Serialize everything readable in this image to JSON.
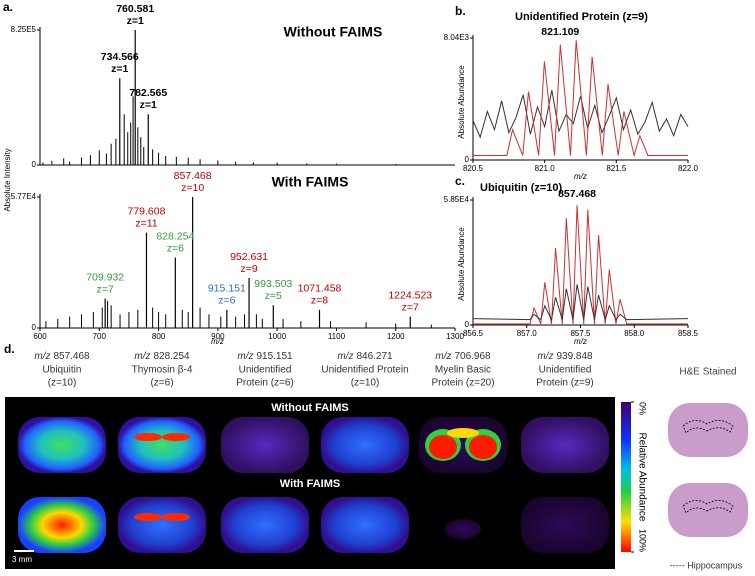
{
  "chart_data": [
    {
      "type": "stick",
      "panel": "a.",
      "title": "Without FAIMS",
      "ylabel": "Absolute Intensity",
      "color": "#000000",
      "xlim": [
        600,
        1300
      ],
      "ylim": [
        0,
        825000
      ],
      "yticks": [
        0,
        {
          "value": 825000,
          "label": "8.25E5"
        }
      ],
      "x": [
        605,
        620,
        640,
        650,
        670,
        685,
        700,
        712,
        720,
        728,
        742,
        748,
        753,
        757,
        765,
        770,
        775,
        790,
        800,
        812,
        830,
        850,
        870,
        900,
        930,
        960,
        1000,
        1050,
        1100,
        1200
      ],
      "values": [
        15000,
        25000,
        40000,
        20000,
        45000,
        60000,
        90000,
        70000,
        130000,
        160000,
        310000,
        200000,
        260000,
        420000,
        230000,
        170000,
        110000,
        95000,
        75000,
        55000,
        50000,
        45000,
        35000,
        28000,
        20000,
        16000,
        14000,
        10000,
        8000,
        6000
      ],
      "annotations": [
        {
          "x": 760.581,
          "y": 825000,
          "text": "z=1",
          "color": "#000000"
        },
        {
          "x": 734.566,
          "y": 530000,
          "text": "z=1",
          "color": "#000000"
        },
        {
          "x": 782.565,
          "y": 310000,
          "text": "z=1",
          "color": "#000000"
        }
      ]
    },
    {
      "type": "stick",
      "title": "With FAIMS",
      "xlabel": "m/z",
      "color": "#000000",
      "xlim": [
        600,
        1300
      ],
      "ylim": [
        0,
        57700
      ],
      "yticks": [
        0,
        {
          "value": 57700,
          "label": "5.77E4"
        }
      ],
      "xticks": [
        600,
        700,
        800,
        900,
        1000,
        1100,
        1200,
        1300
      ],
      "x": [
        610,
        630,
        650,
        670,
        690,
        705,
        714,
        720,
        735,
        750,
        765,
        790,
        800,
        812,
        840,
        850,
        870,
        885,
        905,
        930,
        945,
        965,
        975,
        1010,
        1040,
        1090,
        1150,
        1200,
        1260
      ],
      "values": [
        3000,
        4000,
        5000,
        6000,
        7000,
        9000,
        12000,
        10000,
        6000,
        7000,
        8000,
        9000,
        7000,
        6000,
        8000,
        7000,
        9000,
        6000,
        5000,
        5000,
        6000,
        6000,
        4000,
        4000,
        3000,
        3000,
        2500,
        2000,
        1500
      ],
      "annotations": [
        {
          "x": 857.468,
          "y": 57700,
          "text": "z=10",
          "color": "#c00000"
        },
        {
          "x": 779.608,
          "y": 42000,
          "text": "z=11",
          "color": "#c00000"
        },
        {
          "x": 828.254,
          "y": 31000,
          "text": "z=6",
          "color": "#2e9e3a"
        },
        {
          "x": 709.932,
          "y": 13000,
          "text": "z=7",
          "color": "#2e9e3a"
        },
        {
          "x": 952.631,
          "y": 22000,
          "text": "z=9",
          "color": "#c00000"
        },
        {
          "x": 915.151,
          "y": 8000,
          "text": "z=6",
          "color": "#2f6fb8"
        },
        {
          "x": 993.503,
          "y": 10000,
          "text": "z=5",
          "color": "#2e9e3a"
        },
        {
          "x": 1071.458,
          "y": 8000,
          "text": "z=8",
          "color": "#c00000"
        },
        {
          "x": 1224.523,
          "y": 5000,
          "text": "z=7",
          "color": "#c00000"
        }
      ]
    },
    {
      "type": "line",
      "panel": "b.",
      "title": "Unidentified Protein (z=9)",
      "ylabel": "Absolute Abundance",
      "xlabel": "m/z",
      "xlim": [
        820.5,
        822.0
      ],
      "ylim": [
        0,
        8040
      ],
      "yticks": [
        0,
        {
          "value": 8040,
          "label": "8.04E3"
        }
      ],
      "xticks": [
        820.5,
        {
          "value": 821,
          "label": "821.0"
        },
        821.5,
        {
          "value": 822,
          "label": "822.0"
        }
      ],
      "series": [
        {
          "color": "#333333",
          "x": [
            820.5,
            820.55,
            820.6,
            820.65,
            820.7,
            820.75,
            820.8,
            820.85,
            820.9,
            820.95,
            821.0,
            821.05,
            821.1,
            821.15,
            821.2,
            821.25,
            821.3,
            821.35,
            821.4,
            821.45,
            821.5,
            821.55,
            821.6,
            821.65,
            821.7,
            821.75,
            821.8,
            821.85,
            821.9,
            821.95,
            822.0
          ],
          "values": [
            2600,
            1500,
            3200,
            2000,
            3900,
            1800,
            2800,
            4300,
            1700,
            3500,
            2200,
            4600,
            1900,
            3000,
            2400,
            4200,
            2100,
            3600,
            1800,
            2900,
            4100,
            2000,
            3300,
            1700,
            2500,
            3800,
            1900,
            2700,
            1600,
            3000,
            2200
          ]
        },
        {
          "color": "#d03030",
          "x": [
            820.5,
            820.736,
            820.776,
            820.847,
            820.887,
            820.958,
            820.998,
            821.069,
            821.109,
            821.18,
            821.22,
            821.291,
            821.331,
            821.402,
            821.442,
            821.513,
            821.553,
            821.624,
            821.664,
            821.72,
            822.0
          ],
          "values": [
            300,
            300,
            2000,
            300,
            4500,
            300,
            6500,
            300,
            7600,
            300,
            7900,
            300,
            6800,
            300,
            5000,
            300,
            3200,
            300,
            1600,
            300,
            300
          ]
        }
      ],
      "annotations": [
        {
          "x": 821.109
        }
      ]
    },
    {
      "type": "line",
      "panel": "c.",
      "title": "Ubiquitin (z=10)",
      "ylabel": "Absolute Abundance",
      "xlabel": "m/z",
      "xlim": [
        856.5,
        858.5
      ],
      "ylim": [
        0,
        58500
      ],
      "yticks": [
        0,
        {
          "value": 58500,
          "label": "5.85E4"
        }
      ],
      "xticks": [
        856.5,
        {
          "value": 857,
          "label": "857.0"
        },
        857.5,
        {
          "value": 858,
          "label": "858.0"
        },
        858.5
      ],
      "series": [
        {
          "color": "#d03030",
          "x": [
            856.5,
            857.03,
            857.068,
            857.13,
            857.168,
            857.23,
            857.268,
            857.33,
            857.368,
            857.43,
            857.468,
            857.53,
            857.568,
            857.63,
            857.668,
            857.73,
            857.768,
            857.83,
            857.868,
            857.93,
            858.5
          ],
          "values": [
            500,
            500,
            8000,
            500,
            20000,
            500,
            36000,
            500,
            50000,
            500,
            56000,
            500,
            54000,
            500,
            42000,
            500,
            26000,
            500,
            12000,
            500,
            500
          ]
        },
        {
          "color": "#333333",
          "x": [
            856.5,
            857.03,
            857.068,
            857.13,
            857.168,
            857.23,
            857.268,
            857.33,
            857.368,
            857.43,
            857.468,
            857.53,
            857.568,
            857.63,
            857.668,
            857.73,
            857.768,
            857.83,
            857.868,
            857.93,
            858.5
          ],
          "values": [
            3000,
            2500,
            5000,
            2500,
            9000,
            2500,
            13000,
            2500,
            17000,
            2500,
            19000,
            2500,
            18000,
            2500,
            14000,
            2500,
            9000,
            2500,
            5000,
            2500,
            3000
          ]
        }
      ],
      "annotations": [
        {
          "x": 857.468
        }
      ]
    }
  ],
  "panel_d": {
    "label": "d.",
    "mz_prefix": "m/z",
    "columns": [
      {
        "mz": 857.468,
        "lines": [
          "Ubiquitin",
          "(z=10)"
        ]
      },
      {
        "mz": 828.254,
        "lines": [
          "Thymosin β-4",
          "(z=6)"
        ]
      },
      {
        "mz": 915.151,
        "lines": [
          "Unidentified",
          "Protein (z=6)"
        ]
      },
      {
        "mz": 846.271,
        "lines": [
          "Unidentified Protein",
          "(z=10)"
        ]
      },
      {
        "mz": 706.968,
        "lines": [
          "Myelin Basic",
          "Protein (z=20)"
        ]
      },
      {
        "mz": 939.848,
        "lines": [
          "Unidentified",
          "Protein (z=9)"
        ]
      }
    ],
    "rows": [
      "Without FAIMS",
      "With FAIMS"
    ],
    "colorbar": {
      "label": "Relative Abundance",
      "lim": [
        0,
        100
      ],
      "ticks": [
        {
          "value": 0,
          "label": "0%"
        },
        {
          "value": 100,
          "label": "100%"
        }
      ]
    },
    "scale_bar": "3 mm",
    "he_title": "H&E Stained",
    "he_legend": "----- Hippocampus"
  }
}
